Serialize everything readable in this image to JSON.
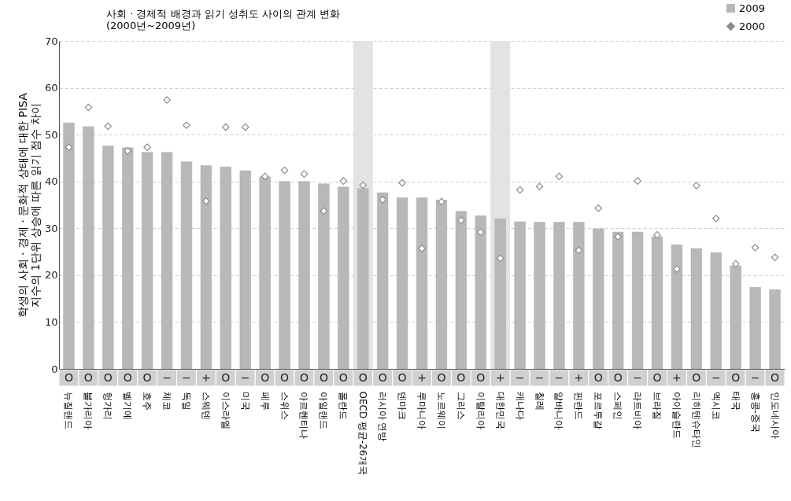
{
  "chart_data": {
    "type": "bar",
    "title": "사회 · 경제적 배경과 읽기 성취도 사이의 관계 변화",
    "subtitle": "(2000년~2009년)",
    "ylabel": "학생의 사회 · 경제 · 문화적 상태에 대한 PISA 지수의 1단위 상승에 따른 읽기 점수 차이",
    "categories": [
      "뉴질랜드",
      "불가리아",
      "헝가리",
      "벨기에",
      "호주",
      "체코",
      "독일",
      "스웨덴",
      "이스라엘",
      "미국",
      "페루",
      "스위스",
      "아르헨티나",
      "아일랜드",
      "폴란드",
      "OECD 평균-26개국",
      "러시아 연방",
      "덴마크",
      "루마니아",
      "노르웨이",
      "그리스",
      "이탈리아",
      "대한민국",
      "캐나다",
      "칠레",
      "알바니아",
      "핀란드",
      "포르투갈",
      "스페인",
      "라트비아",
      "브라질",
      "아이슬란드",
      "리히텐슈타인",
      "멕시코",
      "태국",
      "홍콩-중국",
      "인도네시아"
    ],
    "series": [
      {
        "name": "2009",
        "type": "bar",
        "color": "#b8b8b8",
        "values": [
          52.5,
          51.7,
          47.6,
          47.2,
          46.2,
          46.2,
          44.2,
          43.4,
          43.1,
          42.3,
          41.0,
          40.0,
          40.0,
          39.5,
          38.8,
          38.5,
          37.6,
          36.5,
          36.5,
          36.0,
          33.6,
          32.7,
          32.0,
          31.4,
          31.3,
          31.3,
          31.3,
          29.9,
          29.2,
          29.2,
          28.2,
          26.5,
          25.7,
          24.8,
          22.0,
          17.4,
          16.9
        ]
      },
      {
        "name": "2000",
        "type": "scatter",
        "color": "#8c8c8c",
        "marker": "diamond",
        "values": [
          47.3,
          55.8,
          51.8,
          46.5,
          47.3,
          57.4,
          52.0,
          35.8,
          51.6,
          51.6,
          41.1,
          42.4,
          41.6,
          33.7,
          40.1,
          39.2,
          36.1,
          39.7,
          25.7,
          35.7,
          31.7,
          29.2,
          23.6,
          38.2,
          38.9,
          41.1,
          25.3,
          34.3,
          28.2,
          40.1,
          28.6,
          21.3,
          39.1,
          32.1,
          22.4,
          25.9,
          23.8
        ]
      }
    ],
    "ylim": [
      0,
      70
    ],
    "yticks": [
      0,
      10,
      20,
      30,
      40,
      50,
      60,
      70
    ],
    "grid": "y",
    "legend": "top right",
    "bands": [
      {
        "axis": "x",
        "from": "OECD 평균-26개국",
        "to": "OECD 평균-26개국",
        "color": "#e3e3e3"
      },
      {
        "axis": "x",
        "from": "대한민국",
        "to": "대한민국",
        "color": "#e3e3e3"
      }
    ],
    "annotations": [
      {
        "text": "O",
        "x": "뉴질랜드"
      },
      {
        "text": "O",
        "x": "불가리아"
      },
      {
        "text": "O",
        "x": "헝가리"
      },
      {
        "text": "O",
        "x": "벨기에"
      },
      {
        "text": "O",
        "x": "호주"
      },
      {
        "text": "−",
        "x": "체코"
      },
      {
        "text": "−",
        "x": "독일"
      },
      {
        "text": "+",
        "x": "스웨덴"
      },
      {
        "text": "O",
        "x": "이스라엘"
      },
      {
        "text": "−",
        "x": "미국"
      },
      {
        "text": "O",
        "x": "페루"
      },
      {
        "text": "O",
        "x": "스위스"
      },
      {
        "text": "O",
        "x": "아르헨티나"
      },
      {
        "text": "O",
        "x": "아일랜드"
      },
      {
        "text": "O",
        "x": "폴란드"
      },
      {
        "text": "O",
        "x": "OECD 평균-26개국"
      },
      {
        "text": "O",
        "x": "러시아 연방"
      },
      {
        "text": "O",
        "x": "덴마크"
      },
      {
        "text": "+",
        "x": "루마니아"
      },
      {
        "text": "O",
        "x": "노르웨이"
      },
      {
        "text": "O",
        "x": "그리스"
      },
      {
        "text": "O",
        "x": "이탈리아"
      },
      {
        "text": "+",
        "x": "대한민국"
      },
      {
        "text": "−",
        "x": "캐나다"
      },
      {
        "text": "−",
        "x": "칠레"
      },
      {
        "text": "−",
        "x": "알바니아"
      },
      {
        "text": "+",
        "x": "핀란드"
      },
      {
        "text": "O",
        "x": "포르투갈"
      },
      {
        "text": "O",
        "x": "스페인"
      },
      {
        "text": "−",
        "x": "라트비아"
      },
      {
        "text": "O",
        "x": "브라질"
      },
      {
        "text": "+",
        "x": "아이슬란드"
      },
      {
        "text": "O",
        "x": "리히텐슈타인"
      },
      {
        "text": "−",
        "x": "멕시코"
      },
      {
        "text": "O",
        "x": "태국"
      },
      {
        "text": "−",
        "x": "홍콩-중국"
      },
      {
        "text": "O",
        "x": "인도네시아"
      }
    ]
  }
}
